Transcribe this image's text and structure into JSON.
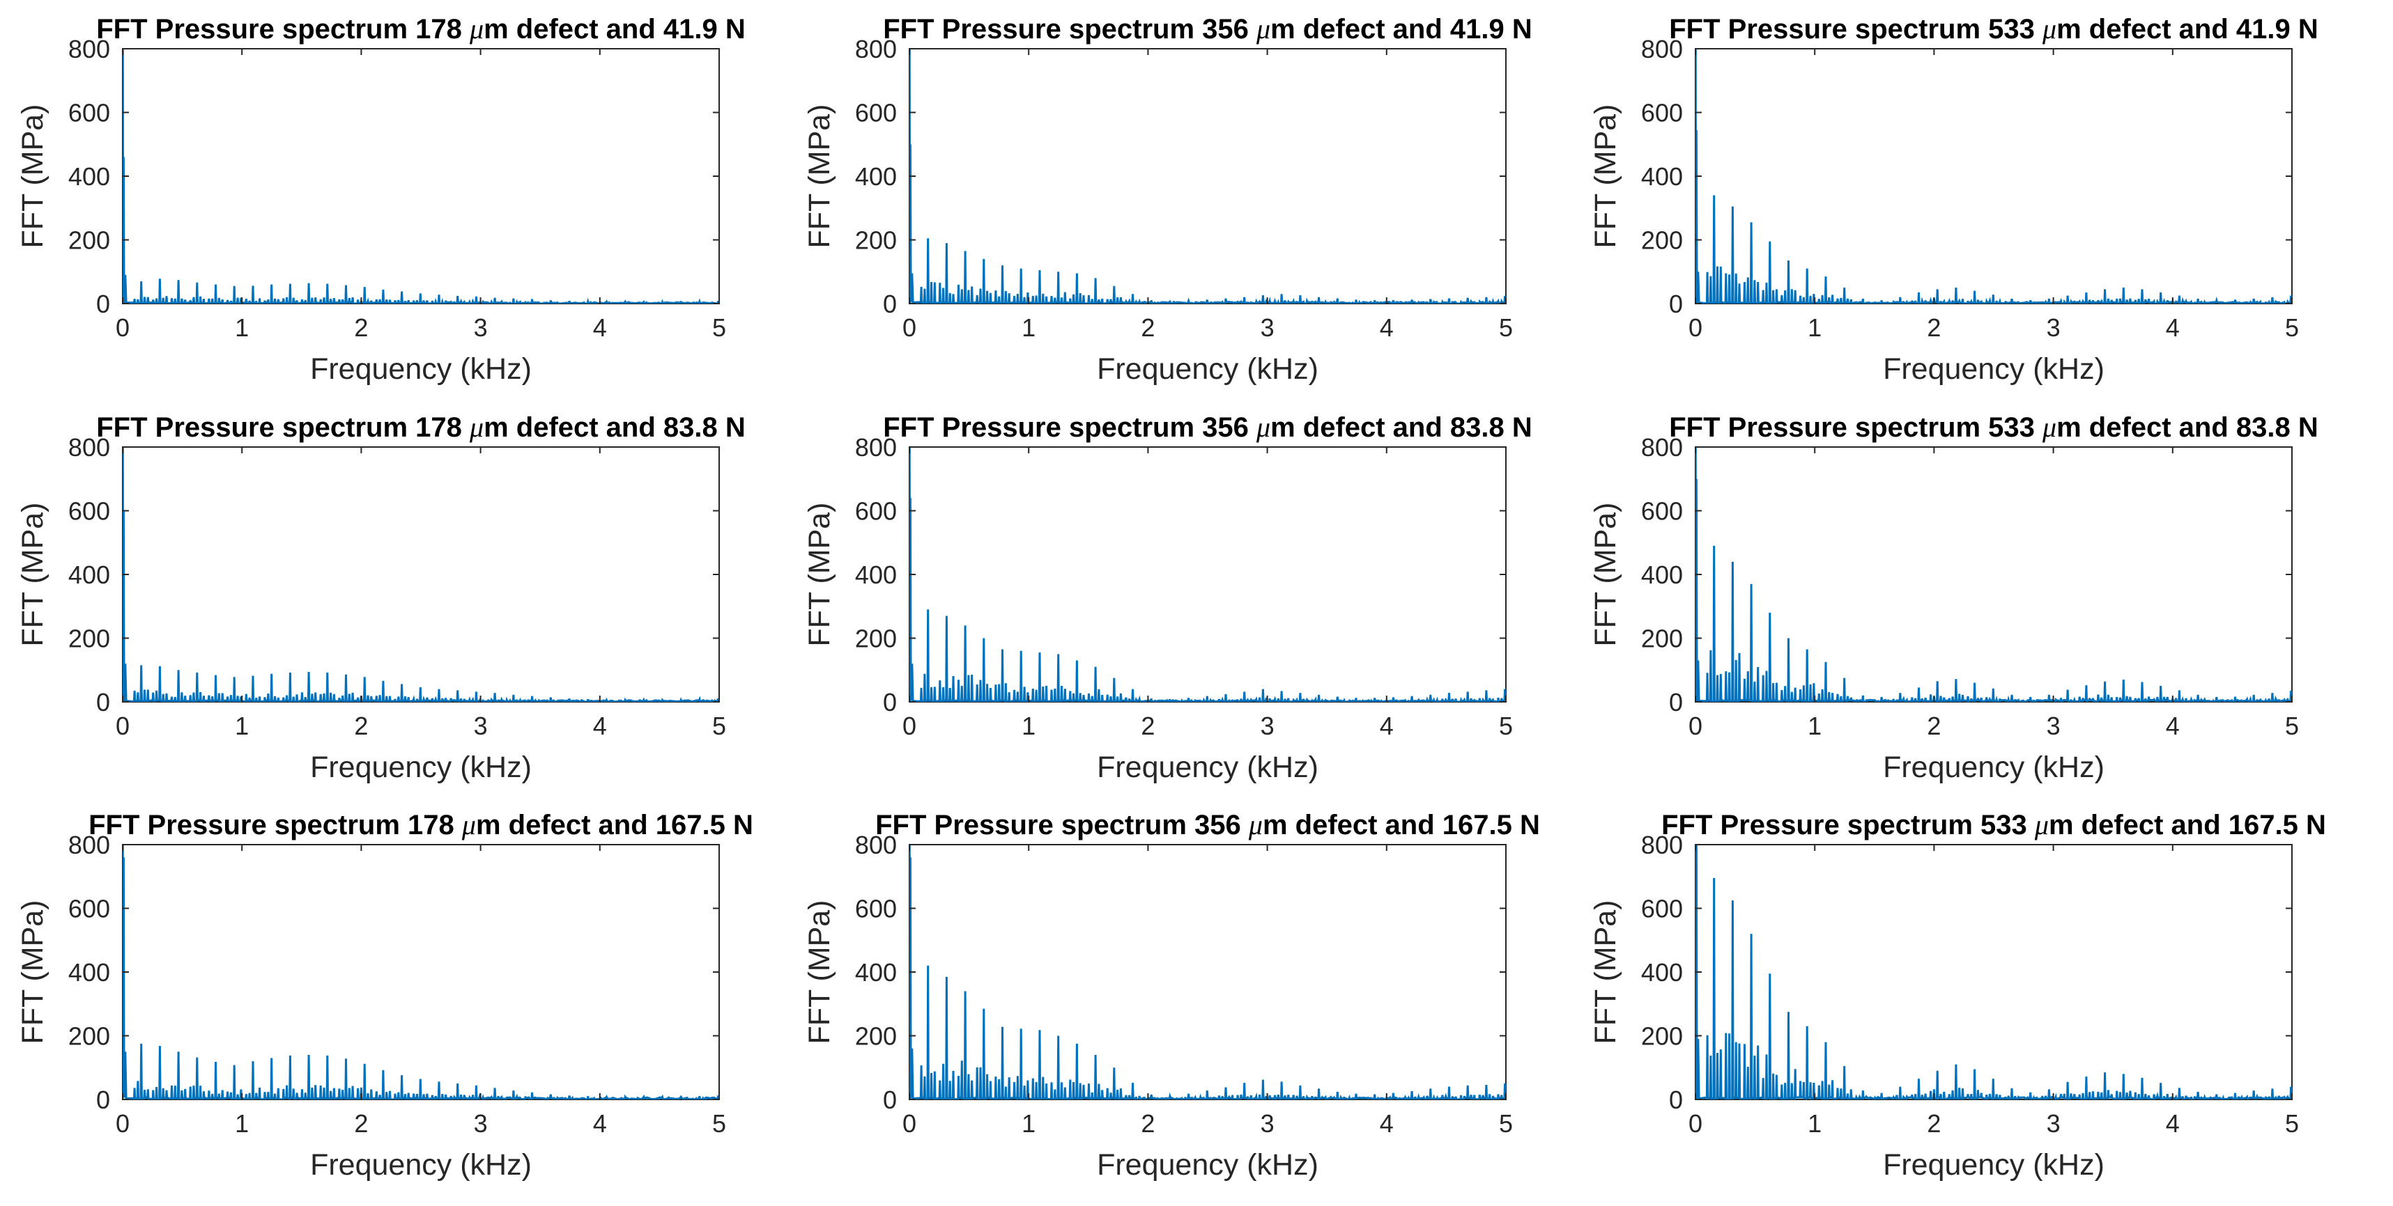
{
  "figure": {
    "series_color": "#0072BD",
    "axis_color": "#262626"
  },
  "chart_data": [
    {
      "type": "line",
      "title_pre": "FFT Pressure spectrum 178 ",
      "title_mu": "μ",
      "title_post": "m defect and 41.9 N",
      "xlabel": "Frequency (kHz)",
      "ylabel": "FFT (MPa)",
      "xlim": [
        0,
        5
      ],
      "ylim": [
        0,
        800
      ],
      "xticks": [
        "0",
        "1",
        "2",
        "3",
        "4",
        "5"
      ],
      "yticks": [
        "0",
        "200",
        "400",
        "600",
        "800"
      ],
      "dc_peaks": [
        800,
        460,
        90
      ],
      "spacing_khz": 0.156,
      "secondary_ratio": 0.28,
      "noise_level": 4,
      "fundamental_peaks": [
        70,
        78,
        74,
        66,
        60,
        55,
        56,
        60,
        62,
        64,
        62,
        58,
        52,
        44,
        38,
        32,
        28,
        24,
        22,
        18,
        16,
        14,
        10,
        8,
        6,
        6,
        6,
        5,
        5,
        5,
        6,
        8
      ]
    },
    {
      "type": "line",
      "title_pre": "FFT Pressure spectrum 356 ",
      "title_mu": "μ",
      "title_post": "m defect and 41.9 N",
      "xlabel": "Frequency (kHz)",
      "ylabel": "FFT (MPa)",
      "xlim": [
        0,
        5
      ],
      "ylim": [
        0,
        800
      ],
      "xticks": [
        "0",
        "1",
        "2",
        "3",
        "4",
        "5"
      ],
      "yticks": [
        "0",
        "200",
        "400",
        "600",
        "800"
      ],
      "dc_peaks": [
        800,
        500,
        95
      ],
      "spacing_khz": 0.156,
      "secondary_ratio": 0.3,
      "noise_level": 5,
      "fundamental_peaks": [
        205,
        190,
        165,
        140,
        120,
        110,
        105,
        100,
        95,
        80,
        55,
        30,
        10,
        6,
        8,
        12,
        16,
        20,
        26,
        30,
        26,
        20,
        16,
        12,
        10,
        10,
        12,
        14,
        16,
        18,
        20,
        24
      ]
    },
    {
      "type": "line",
      "title_pre": "FFT Pressure spectrum 533 ",
      "title_mu": "μ",
      "title_post": "m defect and 41.9 N",
      "xlabel": "Frequency (kHz)",
      "ylabel": "FFT (MPa)",
      "xlim": [
        0,
        5
      ],
      "ylim": [
        0,
        800
      ],
      "xticks": [
        "0",
        "1",
        "2",
        "3",
        "4",
        "5"
      ],
      "yticks": [
        "0",
        "200",
        "400",
        "600",
        "800"
      ],
      "dc_peaks": [
        800,
        545,
        100
      ],
      "spacing_khz": 0.156,
      "secondary_ratio": 0.3,
      "noise_level": 5,
      "fundamental_peaks": [
        340,
        305,
        255,
        195,
        135,
        110,
        85,
        50,
        15,
        10,
        20,
        35,
        45,
        50,
        40,
        28,
        15,
        10,
        15,
        25,
        35,
        45,
        50,
        45,
        35,
        25,
        15,
        10,
        12,
        15,
        20,
        25
      ]
    },
    {
      "type": "line",
      "title_pre": "FFT Pressure spectrum 178 ",
      "title_mu": "μ",
      "title_post": "m defect and 83.8 N",
      "xlabel": "Frequency (kHz)",
      "ylabel": "FFT (MPa)",
      "xlim": [
        0,
        5
      ],
      "ylim": [
        0,
        800
      ],
      "xticks": [
        "0",
        "1",
        "2",
        "3",
        "4",
        "5"
      ],
      "yticks": [
        "0",
        "200",
        "400",
        "600",
        "800"
      ],
      "dc_peaks": [
        800,
        600,
        120
      ],
      "spacing_khz": 0.156,
      "secondary_ratio": 0.28,
      "noise_level": 5,
      "fundamental_peaks": [
        115,
        112,
        100,
        92,
        84,
        78,
        82,
        88,
        92,
        94,
        92,
        86,
        78,
        66,
        56,
        46,
        40,
        36,
        32,
        28,
        22,
        18,
        14,
        10,
        8,
        6,
        6,
        6,
        6,
        6,
        8,
        10
      ]
    },
    {
      "type": "line",
      "title_pre": "FFT Pressure spectrum 356 ",
      "title_mu": "μ",
      "title_post": "m defect and 83.8 N",
      "xlabel": "Frequency (kHz)",
      "ylabel": "FFT (MPa)",
      "xlim": [
        0,
        5
      ],
      "ylim": [
        0,
        800
      ],
      "xticks": [
        "0",
        "1",
        "2",
        "3",
        "4",
        "5"
      ],
      "yticks": [
        "0",
        "200",
        "400",
        "600",
        "800"
      ],
      "dc_peaks": [
        800,
        640,
        120
      ],
      "spacing_khz": 0.156,
      "secondary_ratio": 0.3,
      "noise_level": 5,
      "fundamental_peaks": [
        290,
        270,
        240,
        200,
        165,
        160,
        155,
        150,
        130,
        110,
        75,
        40,
        10,
        8,
        12,
        18,
        24,
        32,
        40,
        34,
        28,
        22,
        16,
        12,
        12,
        14,
        18,
        22,
        28,
        32,
        36,
        40
      ]
    },
    {
      "type": "line",
      "title_pre": "FFT Pressure spectrum 533 ",
      "title_mu": "μ",
      "title_post": "m defect and 83.8 N",
      "xlabel": "Frequency (kHz)",
      "ylabel": "FFT (MPa)",
      "xlim": [
        0,
        5
      ],
      "ylim": [
        0,
        800
      ],
      "xticks": [
        "0",
        "1",
        "2",
        "3",
        "4",
        "5"
      ],
      "yticks": [
        "0",
        "200",
        "400",
        "600",
        "800"
      ],
      "dc_peaks": [
        800,
        700,
        130
      ],
      "spacing_khz": 0.156,
      "secondary_ratio": 0.3,
      "noise_level": 6,
      "fundamental_peaks": [
        490,
        440,
        370,
        280,
        200,
        165,
        125,
        75,
        20,
        15,
        28,
        45,
        65,
        72,
        60,
        42,
        22,
        15,
        22,
        38,
        52,
        64,
        70,
        62,
        50,
        36,
        22,
        15,
        16,
        22,
        28,
        35
      ]
    },
    {
      "type": "line",
      "title_pre": "FFT Pressure spectrum 178 ",
      "title_mu": "μ",
      "title_post": "m defect and 167.5 N",
      "xlabel": "Frequency (kHz)",
      "ylabel": "FFT (MPa)",
      "xlim": [
        0,
        5
      ],
      "ylim": [
        0,
        800
      ],
      "xticks": [
        "0",
        "1",
        "2",
        "3",
        "4",
        "5"
      ],
      "yticks": [
        "0",
        "200",
        "400",
        "600",
        "800"
      ],
      "dc_peaks": [
        800,
        760,
        150
      ],
      "spacing_khz": 0.156,
      "secondary_ratio": 0.28,
      "noise_level": 6,
      "fundamental_peaks": [
        175,
        168,
        150,
        132,
        118,
        108,
        120,
        130,
        138,
        140,
        138,
        128,
        112,
        92,
        76,
        64,
        56,
        50,
        44,
        36,
        28,
        22,
        16,
        12,
        10,
        8,
        8,
        8,
        8,
        8,
        10,
        12
      ]
    },
    {
      "type": "line",
      "title_pre": "FFT Pressure spectrum 356 ",
      "title_mu": "μ",
      "title_post": "m defect and 167.5 N",
      "xlabel": "Frequency (kHz)",
      "ylabel": "FFT (MPa)",
      "xlim": [
        0,
        5
      ],
      "ylim": [
        0,
        800
      ],
      "xticks": [
        "0",
        "1",
        "2",
        "3",
        "4",
        "5"
      ],
      "yticks": [
        "0",
        "200",
        "400",
        "600",
        "800"
      ],
      "dc_peaks": [
        800,
        760,
        160
      ],
      "spacing_khz": 0.156,
      "secondary_ratio": 0.3,
      "noise_level": 6,
      "fundamental_peaks": [
        420,
        385,
        340,
        285,
        228,
        222,
        218,
        200,
        175,
        140,
        100,
        52,
        15,
        10,
        18,
        28,
        38,
        52,
        62,
        56,
        44,
        34,
        24,
        18,
        16,
        20,
        26,
        34,
        40,
        44,
        46,
        50
      ]
    },
    {
      "type": "line",
      "title_pre": "FFT Pressure spectrum 533 ",
      "title_mu": "μ",
      "title_post": "m defect and 167.5 N",
      "xlabel": "Frequency (kHz)",
      "ylabel": "FFT (MPa)",
      "xlim": [
        0,
        5
      ],
      "ylim": [
        0,
        800
      ],
      "xticks": [
        "0",
        "1",
        "2",
        "3",
        "4",
        "5"
      ],
      "yticks": [
        "0",
        "200",
        "400",
        "600",
        "800"
      ],
      "dc_peaks": [
        800,
        800,
        190
      ],
      "spacing_khz": 0.156,
      "secondary_ratio": 0.3,
      "noise_level": 7,
      "fundamental_peaks": [
        695,
        625,
        520,
        395,
        275,
        230,
        180,
        105,
        28,
        20,
        40,
        65,
        90,
        110,
        95,
        65,
        35,
        22,
        32,
        55,
        72,
        85,
        80,
        68,
        52,
        36,
        24,
        16,
        20,
        28,
        34,
        40
      ]
    }
  ]
}
